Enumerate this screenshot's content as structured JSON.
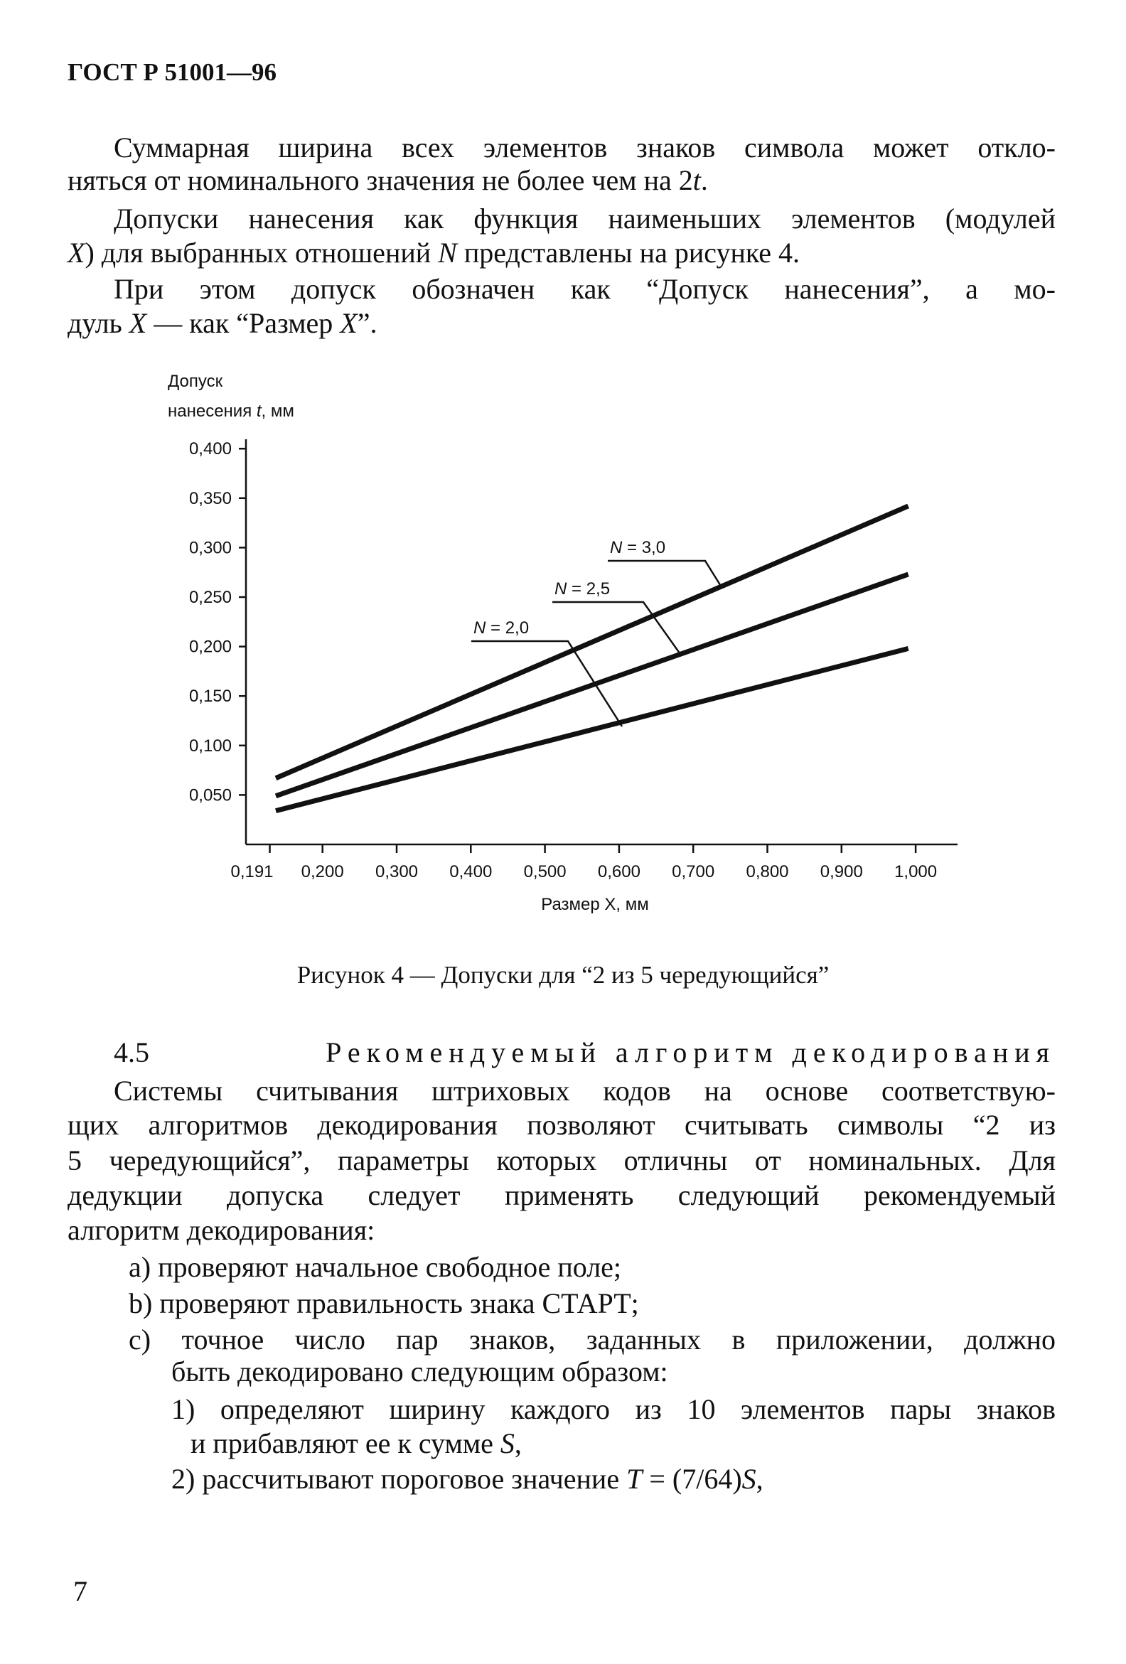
{
  "header": {
    "title": "ГОСТ Р 51001—96"
  },
  "intro": {
    "p1_l1": "Суммарная ширина всех элементов знаков символа может откло-",
    "p1_l2a": "няться от номинального значения не более чем на 2",
    "p1_l2_t": "t",
    "p1_l2b": ".",
    "p2_l1": "Допуски нанесения как функция наименьших элементов (модулей",
    "p2_l2_x": "X",
    "p2_l2a": ") для выбранных отношений ",
    "p2_l2_n": "N",
    "p2_l2b": " представлены на рисунке 4.",
    "p3_l1": "При этом допуск обозначен как “Допуск нанесения”, а мо-",
    "p3_l2a": "дуль ",
    "p3_l2_x": "X",
    "p3_l2b": " — как “Размер ",
    "p3_l2_x2": "X",
    "p3_l2c": "”."
  },
  "chart_data": {
    "type": "line",
    "ylabel_line1": "Допуск",
    "ylabel_line2a": "нанесения ",
    "ylabel_t": "t",
    "ylabel_line2b": ", мм",
    "xlabel": "Размер X, мм",
    "xticks": [
      0.191,
      0.2,
      0.3,
      0.4,
      0.5,
      0.6,
      0.7,
      0.8,
      0.9,
      1.0
    ],
    "xtick_labels": [
      "0,191",
      "0,200",
      "0,300",
      "0,400",
      "0,500",
      "0,600",
      "0,700",
      "0,800",
      "0,900",
      "1,000"
    ],
    "yticks": [
      0.05,
      0.1,
      0.15,
      0.2,
      0.25,
      0.3,
      0.35,
      0.4
    ],
    "ytick_labels": [
      "0,050",
      "0,100",
      "0,150",
      "0,200",
      "0,250",
      "0,300",
      "0,350",
      "0,400"
    ],
    "ylim": [
      0,
      0.4
    ],
    "xlim": [
      0.191,
      1.0
    ],
    "grid": false,
    "series": [
      {
        "name": "N = 3,0",
        "x": [
          0.191,
          0.99
        ],
        "y": [
          0.067,
          0.342
        ]
      },
      {
        "name": "N = 2,5",
        "x": [
          0.191,
          0.99
        ],
        "y": [
          0.049,
          0.273
        ]
      },
      {
        "name": "N = 2,0",
        "x": [
          0.191,
          0.99
        ],
        "y": [
          0.034,
          0.198
        ]
      }
    ]
  },
  "caption": "Рисунок 4 — Допуски для “2 из 5 чередующийся”",
  "section": {
    "number": "4.5",
    "title": "Рекомендуемый алгоритм декодирования",
    "l1": "Системы считывания штриховых кодов на основе соответствую-",
    "l2": "щих алгоритмов декодирования позволяют считывать символы “2 из",
    "l3": "5 чередующийся”, параметры которых отличны от номинальных. Для",
    "l4": "дедукции допуска следует применять следующий рекомендуемый",
    "l5": "алгоритм декодирования:",
    "a": "а) проверяют начальное свободное поле;",
    "b": "b) проверяют правильность знака СТАРТ;",
    "c1": "с) точное число пар знаков, заданных в приложении, должно",
    "c2": "быть декодировано следующим образом:",
    "s1_l1": "1) определяют ширину каждого из 10 элементов пары знаков",
    "s1_l2a": "и прибавляют ее к сумме ",
    "s1_l2_s": "S",
    "s1_l2b": ",",
    "s2a": "2) рассчитывают пороговое значение ",
    "s2_t": "T",
    "s2b": " = (7/64)",
    "s2_s": "S",
    "s2c": ","
  },
  "page_number": "7"
}
